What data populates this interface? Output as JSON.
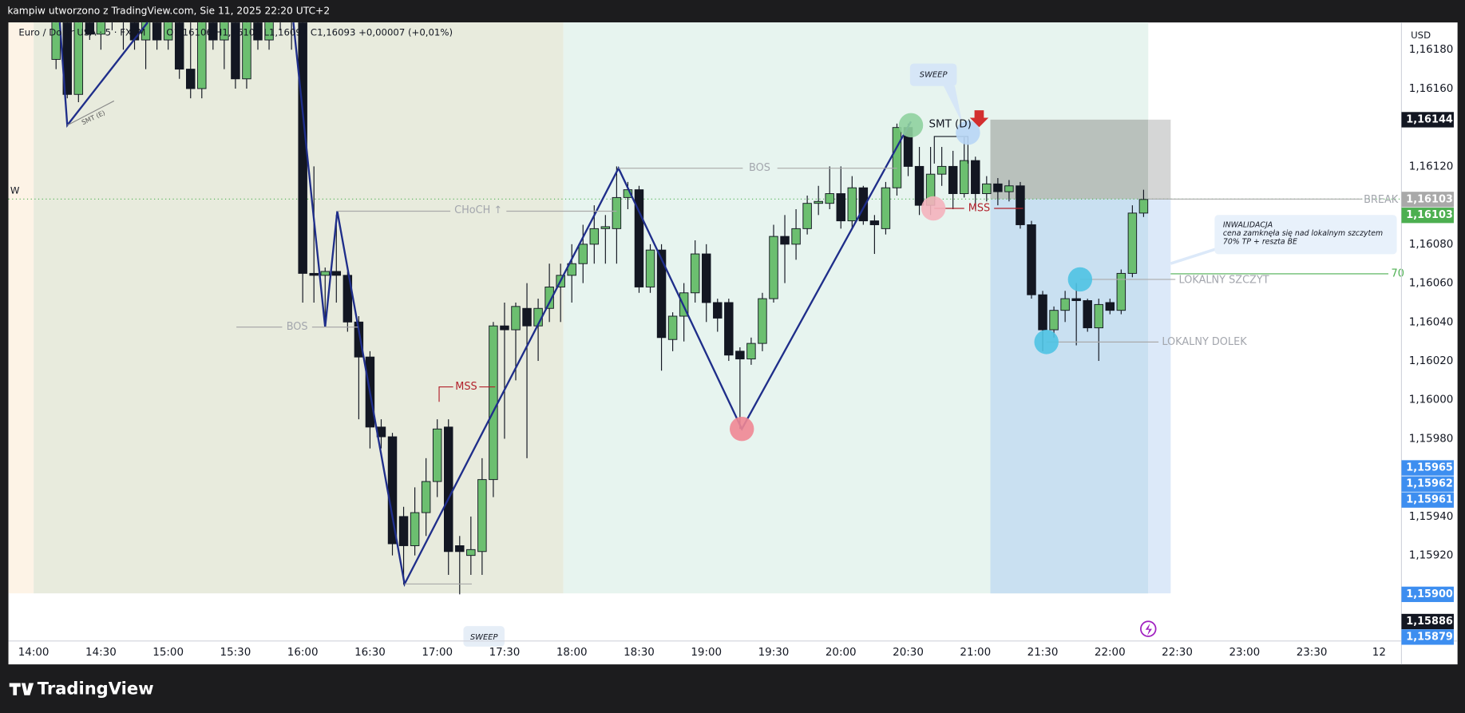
{
  "header": "kampiw utworzono z TradingView.com, Sie 11, 2025 22:20 UTC+2",
  "footer_logo": "TradingView",
  "chart_data": {
    "type": "candlestick",
    "title": "Euro / Dolar USA · 5 · FXCM",
    "legend_ohlc": "O1,16106 H1,16106 L1,16091 C1,16093 +0,00007 (+0,01%)",
    "y_axis_label": "USD",
    "up_color": "#6cbf70",
    "down_color": "#131722",
    "x": [
      850,
      855,
      860,
      865,
      870,
      875,
      880,
      885,
      890,
      895,
      900,
      905,
      910,
      915,
      920,
      925,
      930,
      935,
      940,
      945,
      950,
      955,
      960,
      965,
      970,
      975,
      980,
      985,
      990,
      995,
      1000,
      1005,
      1010,
      1015,
      1020,
      1025,
      1030,
      1035,
      1040,
      1045,
      1050,
      1055,
      1060,
      1065,
      1070,
      1075,
      1080,
      1085,
      1090,
      1095,
      1100,
      1105,
      1110,
      1115,
      1120,
      1125,
      1130,
      1135,
      1140,
      1145,
      1150,
      1155,
      1160,
      1165,
      1170,
      1175,
      1180,
      1185,
      1190,
      1195,
      1200,
      1205,
      1210,
      1215,
      1220,
      1225,
      1230,
      1235,
      1240,
      1245,
      1250,
      1255,
      1260,
      1265,
      1270,
      1275,
      1280,
      1285,
      1290,
      1295,
      1300,
      1305,
      1310,
      1315,
      1320,
      1325,
      1330,
      1335
    ],
    "ohlc": [
      [
        1.16175,
        1.1622,
        1.1617,
        1.1621
      ],
      [
        1.1621,
        1.1622,
        1.16155,
        1.16157
      ],
      [
        1.16157,
        1.1621,
        1.16153,
        1.162
      ],
      [
        1.162,
        1.1621,
        1.16185,
        1.16188
      ],
      [
        1.16188,
        1.1621,
        1.1618,
        1.162
      ],
      [
        1.162,
        1.1621,
        1.1619,
        1.16195
      ],
      [
        1.16195,
        1.1622,
        1.1618,
        1.16212
      ],
      [
        1.16212,
        1.1622,
        1.1618,
        1.16185
      ],
      [
        1.16185,
        1.1621,
        1.1617,
        1.162
      ],
      [
        1.162,
        1.1621,
        1.1618,
        1.16185
      ],
      [
        1.16185,
        1.1621,
        1.1618,
        1.162
      ],
      [
        1.162,
        1.1621,
        1.16165,
        1.1617
      ],
      [
        1.1617,
        1.1621,
        1.16155,
        1.1616
      ],
      [
        1.1616,
        1.1622,
        1.16155,
        1.1621
      ],
      [
        1.1621,
        1.1622,
        1.1618,
        1.16185
      ],
      [
        1.16185,
        1.1622,
        1.1617,
        1.1621
      ],
      [
        1.1621,
        1.1622,
        1.1616,
        1.16165
      ],
      [
        1.16165,
        1.1622,
        1.1616,
        1.1621
      ],
      [
        1.1621,
        1.1622,
        1.1618,
        1.16185
      ],
      [
        1.16185,
        1.1621,
        1.1618,
        1.162
      ],
      [
        1.162,
        1.1621,
        1.1619,
        1.16195
      ],
      [
        1.16195,
        1.1621,
        1.1618,
        1.162
      ],
      [
        1.162,
        1.1621,
        1.1605,
        1.16065
      ],
      [
        1.16065,
        1.1612,
        1.1605,
        1.16064
      ],
      [
        1.16064,
        1.16068,
        1.1604,
        1.16066
      ],
      [
        1.16066,
        1.16095,
        1.1605,
        1.16064
      ],
      [
        1.16064,
        1.16066,
        1.16035,
        1.1604
      ],
      [
        1.1604,
        1.16043,
        1.1599,
        1.16022
      ],
      [
        1.16022,
        1.16025,
        1.15975,
        1.15986
      ],
      [
        1.15986,
        1.1599,
        1.15975,
        1.15981
      ],
      [
        1.15981,
        1.15983,
        1.1592,
        1.15926
      ],
      [
        1.1594,
        1.15945,
        1.15905,
        1.15925
      ],
      [
        1.15925,
        1.15955,
        1.1592,
        1.15942
      ],
      [
        1.15942,
        1.1597,
        1.1593,
        1.15958
      ],
      [
        1.15958,
        1.1599,
        1.1595,
        1.15985
      ],
      [
        1.15986,
        1.1599,
        1.1591,
        1.15922
      ],
      [
        1.15925,
        1.1593,
        1.159,
        1.15922
      ],
      [
        1.1592,
        1.1594,
        1.1591,
        1.15923
      ],
      [
        1.15922,
        1.1597,
        1.1591,
        1.15959
      ],
      [
        1.15959,
        1.1604,
        1.1595,
        1.16038
      ],
      [
        1.16038,
        1.1605,
        1.1598,
        1.16036
      ],
      [
        1.16036,
        1.1605,
        1.1601,
        1.16048
      ],
      [
        1.16047,
        1.1606,
        1.1597,
        1.16038
      ],
      [
        1.16038,
        1.16052,
        1.1602,
        1.16047
      ],
      [
        1.16047,
        1.1607,
        1.1604,
        1.16058
      ],
      [
        1.16058,
        1.1607,
        1.1604,
        1.16064
      ],
      [
        1.16064,
        1.1608,
        1.1605,
        1.1607
      ],
      [
        1.1607,
        1.1609,
        1.1606,
        1.1608
      ],
      [
        1.1608,
        1.161,
        1.1607,
        1.16088
      ],
      [
        1.16088,
        1.16095,
        1.1607,
        1.16089
      ],
      [
        1.16088,
        1.1612,
        1.1607,
        1.16104
      ],
      [
        1.16104,
        1.16112,
        1.16098,
        1.16108
      ],
      [
        1.16108,
        1.1611,
        1.16055,
        1.16058
      ],
      [
        1.16058,
        1.1608,
        1.16055,
        1.16077
      ],
      [
        1.16077,
        1.1608,
        1.16015,
        1.16032
      ],
      [
        1.16031,
        1.16045,
        1.16025,
        1.16043
      ],
      [
        1.16043,
        1.1606,
        1.1603,
        1.16055
      ],
      [
        1.16055,
        1.16082,
        1.1605,
        1.16075
      ],
      [
        1.16075,
        1.1608,
        1.1604,
        1.1605
      ],
      [
        1.1605,
        1.16052,
        1.16035,
        1.16042
      ],
      [
        1.1605,
        1.16052,
        1.1602,
        1.16023
      ],
      [
        1.16025,
        1.16027,
        1.15985,
        1.16021
      ],
      [
        1.16021,
        1.16032,
        1.16018,
        1.16029
      ],
      [
        1.16029,
        1.16055,
        1.16025,
        1.16052
      ],
      [
        1.16052,
        1.1609,
        1.1605,
        1.16084
      ],
      [
        1.16084,
        1.16095,
        1.1606,
        1.1608
      ],
      [
        1.1608,
        1.16098,
        1.16072,
        1.16088
      ],
      [
        1.16088,
        1.16105,
        1.16085,
        1.16101
      ],
      [
        1.16101,
        1.1611,
        1.16095,
        1.16102
      ],
      [
        1.16101,
        1.1612,
        1.16098,
        1.16106
      ],
      [
        1.16106,
        1.1612,
        1.16088,
        1.16092
      ],
      [
        1.16092,
        1.16115,
        1.16088,
        1.16109
      ],
      [
        1.16109,
        1.1611,
        1.1609,
        1.16092
      ],
      [
        1.16092,
        1.16095,
        1.16075,
        1.1609
      ],
      [
        1.16088,
        1.16112,
        1.16085,
        1.16109
      ],
      [
        1.16109,
        1.16142,
        1.16105,
        1.1614
      ],
      [
        1.1614,
        1.16142,
        1.16115,
        1.1612
      ],
      [
        1.1612,
        1.1613,
        1.16095,
        1.161
      ],
      [
        1.161,
        1.1613,
        1.16095,
        1.16116
      ],
      [
        1.16116,
        1.1613,
        1.1611,
        1.1612
      ],
      [
        1.1612,
        1.16128,
        1.16098,
        1.16106
      ],
      [
        1.16106,
        1.16135,
        1.16104,
        1.16123
      ],
      [
        1.16123,
        1.16125,
        1.16098,
        1.16106
      ],
      [
        1.16106,
        1.16115,
        1.16102,
        1.16111
      ],
      [
        1.16111,
        1.16114,
        1.161,
        1.16107
      ],
      [
        1.16107,
        1.16113,
        1.16102,
        1.1611
      ],
      [
        1.1611,
        1.16112,
        1.16088,
        1.1609
      ],
      [
        1.1609,
        1.16092,
        1.16052,
        1.16054
      ],
      [
        1.16054,
        1.16056,
        1.16025,
        1.16036
      ],
      [
        1.16036,
        1.16048,
        1.16032,
        1.16046
      ],
      [
        1.16046,
        1.16056,
        1.1604,
        1.16052
      ],
      [
        1.16052,
        1.1606,
        1.16028,
        1.16051
      ],
      [
        1.16051,
        1.16052,
        1.16035,
        1.16037
      ],
      [
        1.16037,
        1.16052,
        1.1602,
        1.16049
      ],
      [
        1.1605,
        1.16052,
        1.16044,
        1.16046
      ],
      [
        1.16046,
        1.16067,
        1.16044,
        1.16065
      ],
      [
        1.16065,
        1.161,
        1.16063,
        1.16096
      ],
      [
        1.16096,
        1.16108,
        1.16094,
        1.16103
      ]
    ],
    "xlim": [
      828.75,
      1450
    ],
    "xticks": [
      {
        "value": 840,
        "label": "14:00"
      },
      {
        "value": 870,
        "label": "14:30"
      },
      {
        "value": 900,
        "label": "15:00"
      },
      {
        "value": 930,
        "label": "15:30"
      },
      {
        "value": 960,
        "label": "16:00"
      },
      {
        "value": 990,
        "label": "16:30"
      },
      {
        "value": 1020,
        "label": "17:00"
      },
      {
        "value": 1050,
        "label": "17:30"
      },
      {
        "value": 1080,
        "label": "18:00"
      },
      {
        "value": 1110,
        "label": "18:30"
      },
      {
        "value": 1140,
        "label": "19:00"
      },
      {
        "value": 1170,
        "label": "19:30"
      },
      {
        "value": 1200,
        "label": "20:00"
      },
      {
        "value": 1230,
        "label": "20:30"
      },
      {
        "value": 1260,
        "label": "21:00"
      },
      {
        "value": 1290,
        "label": "21:30"
      },
      {
        "value": 1320,
        "label": "22:00"
      },
      {
        "value": 1350,
        "label": "22:30"
      },
      {
        "value": 1380,
        "label": "23:00"
      },
      {
        "value": 1410,
        "label": "23:30"
      },
      {
        "value": 1440,
        "label": "12"
      }
    ],
    "ylim": [
      1.15876,
      1.16194
    ],
    "yticks": [
      {
        "value": 1.1618,
        "label": "1,16180"
      },
      {
        "value": 1.1616,
        "label": "1,16160"
      },
      {
        "value": 1.1612,
        "label": "1,16120"
      },
      {
        "value": 1.1608,
        "label": "1,16080"
      },
      {
        "value": 1.1606,
        "label": "1,16060"
      },
      {
        "value": 1.1604,
        "label": "1,16040"
      },
      {
        "value": 1.1602,
        "label": "1,16020"
      },
      {
        "value": 1.16,
        "label": "1,16000"
      },
      {
        "value": 1.1598,
        "label": "1,15980"
      },
      {
        "value": 1.1594,
        "label": "1,15940"
      },
      {
        "value": 1.1592,
        "label": "1,15920"
      }
    ],
    "price_labels": [
      {
        "value": 1.16144,
        "label": "1,16144",
        "color": "#131722"
      },
      {
        "value": 1.16103,
        "label": "1,16103",
        "color": "#a9a9a9"
      },
      {
        "value": 1.16103,
        "label": "1,16103",
        "color": "#4caf50"
      },
      {
        "value": 1.15965,
        "label": "1,15965",
        "color": "#3d8ef0"
      },
      {
        "value": 1.15962,
        "label": "1,15962",
        "color": "#3d8ef0"
      },
      {
        "value": 1.15961,
        "label": "1,15961",
        "color": "#3d8ef0"
      },
      {
        "value": 1.159,
        "label": "1,15900",
        "color": "#3d8ef0"
      },
      {
        "value": 1.15886,
        "label": "1,15886",
        "color": "#131722"
      },
      {
        "value": 1.15879,
        "label": "1,15879",
        "color": "#3d8ef0"
      }
    ],
    "annotations": [
      "BOS",
      "CHoCH ↑",
      "BOS",
      "MSS",
      "MSS",
      "SMT (D)",
      "SMT (E)",
      "SWEEP",
      "SWEEP",
      "LOKALNY SZCZYT",
      "LOKALNY DOLEK",
      "BREAK",
      "70",
      "W"
    ],
    "note": [
      "INWALIDACJA",
      "cena zamknęła się nad lokalnym szczytem",
      "70% TP + reszta BE"
    ]
  }
}
